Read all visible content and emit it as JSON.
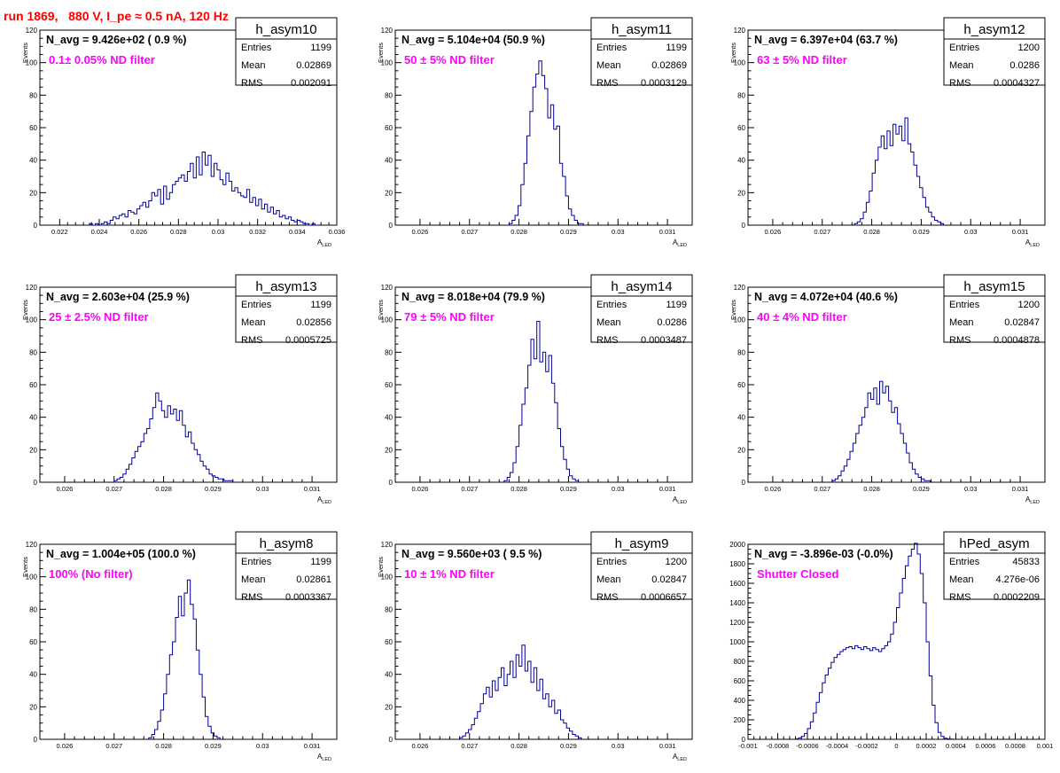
{
  "page": {
    "run_title": "run 1869,   880 V, I_pe ≈ 0.5 nA, 120 Hz"
  },
  "colors": {
    "title_red": "#ff0000",
    "annotation_magenta": "#ff00ff",
    "histogram_line": "#000099",
    "axis": "#000000"
  },
  "chart_data": [
    {
      "type": "bar",
      "hist_name": "h_asym10",
      "navg_text": "N_avg = 9.426e+02 ( 0.9 %)",
      "annotation": "0.1± 0.05% ND filter",
      "stats": {
        "entries_label": "Entries",
        "entries": "1199",
        "mean_label": "Mean",
        "mean": "0.02869",
        "rms_label": "RMS",
        "rms": "0.002091"
      },
      "ylabel": "Events",
      "xlabel_main": "A",
      "xlabel_sub": "LED",
      "xlim": [
        0.021,
        0.036
      ],
      "ylim": [
        0,
        120
      ],
      "xticks": [
        0.022,
        0.024,
        0.026,
        0.028,
        0.03,
        0.032,
        0.034,
        0.036
      ],
      "xtick_labels": [
        "0.022",
        "0.024",
        "0.026",
        "0.028",
        "0.03",
        "0.032",
        "0.034",
        "0.036"
      ],
      "yticks": [
        0,
        20,
        40,
        60,
        80,
        100,
        120
      ],
      "ytick_labels": [
        "0",
        "20",
        "40",
        "60",
        "80",
        "100",
        "120"
      ],
      "x_start": 0.0235,
      "bin_width": 0.00015,
      "values": [
        1,
        0,
        1,
        0,
        1,
        2,
        1,
        3,
        5,
        4,
        6,
        7,
        5,
        9,
        8,
        7,
        10,
        12,
        14,
        11,
        15,
        20,
        18,
        22,
        13,
        24,
        16,
        20,
        25,
        27,
        29,
        31,
        27,
        33,
        38,
        29,
        42,
        31,
        45,
        37,
        43,
        30,
        38,
        34,
        28,
        25,
        32,
        27,
        21,
        23,
        20,
        18,
        17,
        22,
        14,
        17,
        12,
        16,
        10,
        13,
        8,
        11,
        7,
        9,
        5,
        6,
        4,
        5,
        3,
        2,
        3,
        2,
        1,
        1,
        0,
        1,
        0
      ]
    },
    {
      "type": "bar",
      "hist_name": "h_asym11",
      "navg_text": "N_avg = 5.104e+04 (50.9 %)",
      "annotation": "50 ± 5% ND filter",
      "stats": {
        "entries_label": "Entries",
        "entries": "1199",
        "mean_label": "Mean",
        "mean": "0.02869",
        "rms_label": "RMS",
        "rms": "0.0003129"
      },
      "ylabel": "Events",
      "xlabel_main": "A",
      "xlabel_sub": "LED",
      "xlim": [
        0.0255,
        0.0315
      ],
      "ylim": [
        0,
        120
      ],
      "xticks": [
        0.026,
        0.027,
        0.028,
        0.029,
        0.03,
        0.031
      ],
      "xtick_labels": [
        "0.026",
        "0.027",
        "0.028",
        "0.029",
        "0.03",
        "0.031"
      ],
      "yticks": [
        0,
        20,
        40,
        60,
        80,
        100,
        120
      ],
      "ytick_labels": [
        "0",
        "20",
        "40",
        "60",
        "80",
        "100",
        "120"
      ],
      "x_start": 0.0278,
      "bin_width": 6e-05,
      "values": [
        1,
        3,
        6,
        12,
        25,
        38,
        55,
        70,
        85,
        93,
        101,
        92,
        84,
        66,
        74,
        59,
        61,
        38,
        30,
        18,
        10,
        6,
        3,
        1,
        1
      ]
    },
    {
      "type": "bar",
      "hist_name": "h_asym12",
      "navg_text": "N_avg = 6.397e+04 (63.7 %)",
      "annotation": "63 ± 5% ND filter",
      "stats": {
        "entries_label": "Entries",
        "entries": "1200",
        "mean_label": "Mean",
        "mean": "0.0286",
        "rms_label": "RMS",
        "rms": "0.0004327"
      },
      "ylabel": "Events",
      "xlabel_main": "A",
      "xlabel_sub": "LED",
      "xlim": [
        0.0255,
        0.0315
      ],
      "ylim": [
        0,
        120
      ],
      "xticks": [
        0.026,
        0.027,
        0.028,
        0.029,
        0.03,
        0.031
      ],
      "xtick_labels": [
        "0.026",
        "0.027",
        "0.028",
        "0.029",
        "0.03",
        "0.031"
      ],
      "yticks": [
        0,
        20,
        40,
        60,
        80,
        100,
        120
      ],
      "ytick_labels": [
        "0",
        "20",
        "40",
        "60",
        "80",
        "100",
        "120"
      ],
      "x_start": 0.02765,
      "bin_width": 6e-05,
      "values": [
        1,
        2,
        4,
        8,
        14,
        21,
        32,
        40,
        48,
        55,
        47,
        58,
        49,
        62,
        56,
        61,
        52,
        66,
        50,
        45,
        37,
        30,
        23,
        17,
        11,
        8,
        5,
        3,
        2,
        1
      ]
    },
    {
      "type": "bar",
      "hist_name": "h_asym13",
      "navg_text": "N_avg = 2.603e+04 (25.9 %)",
      "annotation": "25 ± 2.5% ND filter",
      "stats": {
        "entries_label": "Entries",
        "entries": "1199",
        "mean_label": "Mean",
        "mean": "0.02856",
        "rms_label": "RMS",
        "rms": "0.0005725"
      },
      "ylabel": "Events",
      "xlabel_main": "A",
      "xlabel_sub": "LED",
      "xlim": [
        0.0255,
        0.0315
      ],
      "ylim": [
        0,
        120
      ],
      "xticks": [
        0.026,
        0.027,
        0.028,
        0.029,
        0.03,
        0.031
      ],
      "xtick_labels": [
        "0.026",
        "0.027",
        "0.028",
        "0.029",
        "0.03",
        "0.031"
      ],
      "yticks": [
        0,
        20,
        40,
        60,
        80,
        100,
        120
      ],
      "ytick_labels": [
        "0",
        "20",
        "40",
        "60",
        "80",
        "100",
        "120"
      ],
      "x_start": 0.027,
      "bin_width": 6e-05,
      "values": [
        1,
        2,
        3,
        5,
        8,
        11,
        15,
        19,
        22,
        25,
        30,
        33,
        39,
        46,
        55,
        50,
        44,
        40,
        47,
        42,
        45,
        38,
        44,
        35,
        28,
        31,
        24,
        20,
        17,
        13,
        10,
        8,
        5,
        4,
        3,
        2,
        2,
        1,
        1,
        1
      ]
    },
    {
      "type": "bar",
      "hist_name": "h_asym14",
      "navg_text": "N_avg = 8.018e+04 (79.9 %)",
      "annotation": "79 ± 5% ND filter",
      "stats": {
        "entries_label": "Entries",
        "entries": "1199",
        "mean_label": "Mean",
        "mean": "0.0286",
        "rms_label": "RMS",
        "rms": "0.0003487"
      },
      "ylabel": "Events",
      "xlabel_main": "A",
      "xlabel_sub": "LED",
      "xlim": [
        0.0255,
        0.0315
      ],
      "ylim": [
        0,
        120
      ],
      "xticks": [
        0.026,
        0.027,
        0.028,
        0.029,
        0.03,
        0.031
      ],
      "xtick_labels": [
        "0.026",
        "0.027",
        "0.028",
        "0.029",
        "0.03",
        "0.031"
      ],
      "yticks": [
        0,
        20,
        40,
        60,
        80,
        100,
        120
      ],
      "ytick_labels": [
        "0",
        "20",
        "40",
        "60",
        "80",
        "100",
        "120"
      ],
      "x_start": 0.0277,
      "bin_width": 6e-05,
      "values": [
        1,
        3,
        6,
        12,
        22,
        35,
        48,
        58,
        72,
        88,
        76,
        99,
        74,
        80,
        68,
        78,
        61,
        49,
        33,
        22,
        14,
        8,
        4,
        2,
        1
      ]
    },
    {
      "type": "bar",
      "hist_name": "h_asym15",
      "navg_text": "N_avg = 4.072e+04 (40.6 %)",
      "annotation": "40 ± 4% ND filter",
      "stats": {
        "entries_label": "Entries",
        "entries": "1200",
        "mean_label": "Mean",
        "mean": "0.02847",
        "rms_label": "RMS",
        "rms": "0.0004878"
      },
      "ylabel": "Events",
      "xlabel_main": "A",
      "xlabel_sub": "LED",
      "xlim": [
        0.0255,
        0.0315
      ],
      "ylim": [
        0,
        120
      ],
      "xticks": [
        0.026,
        0.027,
        0.028,
        0.029,
        0.03,
        0.031
      ],
      "xtick_labels": [
        "0.026",
        "0.027",
        "0.028",
        "0.029",
        "0.03",
        "0.031"
      ],
      "yticks": [
        0,
        20,
        40,
        60,
        80,
        100,
        120
      ],
      "ytick_labels": [
        "0",
        "20",
        "40",
        "60",
        "80",
        "100",
        "120"
      ],
      "x_start": 0.0272,
      "bin_width": 6e-05,
      "values": [
        1,
        2,
        4,
        7,
        10,
        14,
        19,
        24,
        30,
        35,
        40,
        46,
        55,
        51,
        58,
        48,
        62,
        55,
        59,
        50,
        43,
        46,
        36,
        30,
        24,
        18,
        12,
        8,
        5,
        3,
        2,
        1,
        1
      ]
    },
    {
      "type": "bar",
      "hist_name": "h_asym8",
      "navg_text": "N_avg = 1.004e+05 (100.0 %)",
      "annotation": "100% (No filter)",
      "stats": {
        "entries_label": "Entries",
        "entries": "1199",
        "mean_label": "Mean",
        "mean": "0.02861",
        "rms_label": "RMS",
        "rms": "0.0003367"
      },
      "ylabel": "Events",
      "xlabel_main": "A",
      "xlabel_sub": "LED",
      "xlim": [
        0.0255,
        0.0315
      ],
      "ylim": [
        0,
        120
      ],
      "xticks": [
        0.026,
        0.027,
        0.028,
        0.029,
        0.03,
        0.031
      ],
      "xtick_labels": [
        "0.026",
        "0.027",
        "0.028",
        "0.029",
        "0.03",
        "0.031"
      ],
      "yticks": [
        0,
        20,
        40,
        60,
        80,
        100,
        120
      ],
      "ytick_labels": [
        "0",
        "20",
        "40",
        "60",
        "80",
        "100",
        "120"
      ],
      "x_start": 0.0277,
      "bin_width": 6e-05,
      "values": [
        1,
        3,
        6,
        11,
        18,
        28,
        40,
        52,
        60,
        75,
        88,
        76,
        90,
        98,
        83,
        74,
        55,
        40,
        26,
        14,
        8,
        4,
        2,
        1
      ]
    },
    {
      "type": "bar",
      "hist_name": "h_asym9",
      "navg_text": "N_avg = 9.560e+03 ( 9.5 %)",
      "annotation": "10 ± 1% ND filter",
      "stats": {
        "entries_label": "Entries",
        "entries": "1200",
        "mean_label": "Mean",
        "mean": "0.02847",
        "rms_label": "RMS",
        "rms": "0.0006657"
      },
      "ylabel": "Events",
      "xlabel_main": "A",
      "xlabel_sub": "LED",
      "xlim": [
        0.0255,
        0.0315
      ],
      "ylim": [
        0,
        120
      ],
      "xticks": [
        0.026,
        0.027,
        0.028,
        0.029,
        0.03,
        0.031
      ],
      "xtick_labels": [
        "0.026",
        "0.027",
        "0.028",
        "0.029",
        "0.03",
        "0.031"
      ],
      "yticks": [
        0,
        20,
        40,
        60,
        80,
        100,
        120
      ],
      "ytick_labels": [
        "0",
        "20",
        "40",
        "60",
        "80",
        "100",
        "120"
      ],
      "x_start": 0.0268,
      "bin_width": 6e-05,
      "values": [
        1,
        2,
        4,
        6,
        9,
        13,
        17,
        22,
        28,
        32,
        26,
        36,
        30,
        38,
        44,
        33,
        40,
        48,
        38,
        52,
        45,
        58,
        42,
        48,
        35,
        44,
        30,
        37,
        25,
        28,
        20,
        24,
        16,
        18,
        12,
        10,
        7,
        5,
        3,
        2,
        1
      ]
    },
    {
      "type": "bar",
      "hist_name": "hPed_asym",
      "navg_text": "N_avg = -3.896e-03 (-0.0%)",
      "annotation": "Shutter Closed",
      "stats": {
        "entries_label": "Entries",
        "entries": "45833",
        "mean_label": "Mean",
        "mean": "4.276e-06",
        "rms_label": "RMS",
        "rms": "0.0002209"
      },
      "ylabel": "",
      "xlabel_main": "",
      "xlabel_sub": "",
      "xlim": [
        -0.001,
        0.001
      ],
      "ylim": [
        0,
        2000
      ],
      "xticks": [
        -0.001,
        -0.0008,
        -0.0006,
        -0.0004,
        -0.0002,
        0,
        0.0002,
        0.0004,
        0.0006,
        0.0008,
        0.001
      ],
      "xtick_labels": [
        "-0.001",
        "-0.0008",
        "-0.0006",
        "-0.0004",
        "-0.0002",
        "0",
        "0.0002",
        "0.0004",
        "0.0006",
        "0.0008",
        "0.001"
      ],
      "yticks": [
        0,
        200,
        400,
        600,
        800,
        1000,
        1200,
        1400,
        1600,
        1800,
        2000
      ],
      "ytick_labels": [
        "0",
        "200",
        "400",
        "600",
        "800",
        "1000",
        "1200",
        "1400",
        "1600",
        "1800",
        "2000"
      ],
      "x_start": -0.00068,
      "bin_width": 2e-05,
      "values": [
        5,
        15,
        30,
        60,
        110,
        180,
        270,
        380,
        480,
        580,
        660,
        730,
        790,
        840,
        870,
        900,
        920,
        940,
        950,
        930,
        960,
        940,
        920,
        950,
        930,
        910,
        940,
        920,
        900,
        930,
        960,
        1000,
        1080,
        1200,
        1350,
        1500,
        1650,
        1780,
        1880,
        1950,
        2010,
        1900,
        1700,
        1400,
        1000,
        650,
        350,
        170,
        70,
        30,
        12,
        5,
        2
      ]
    }
  ]
}
